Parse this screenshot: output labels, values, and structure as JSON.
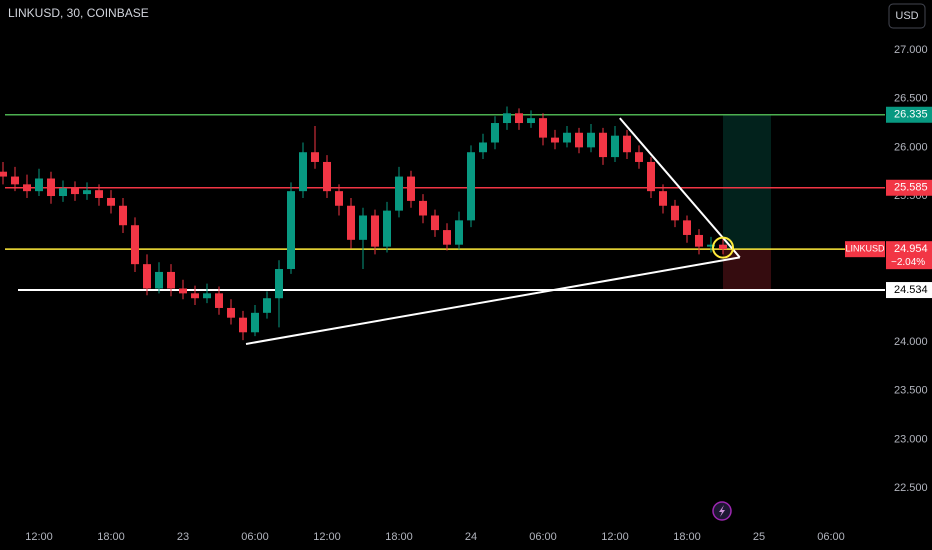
{
  "chart_data": {
    "type": "candlestick",
    "title": "LINKUSD, 30, COINBASE",
    "currency": "USD",
    "symbol": "LINKUSD",
    "change": "−2.04%",
    "up_color": "#089981",
    "down_color": "#f23645",
    "open": [
      25.75,
      25.7,
      25.62,
      25.55,
      25.68,
      25.5,
      25.58,
      25.52,
      25.56,
      25.48,
      25.4,
      25.2,
      24.8,
      24.55,
      24.72,
      24.55,
      24.5,
      24.45,
      24.5,
      24.35,
      24.25,
      24.1,
      24.3,
      24.45,
      24.75,
      25.55,
      25.95,
      25.85,
      25.55,
      25.4,
      25.05,
      25.3,
      24.98,
      25.35,
      25.7,
      25.45,
      25.3,
      25.15,
      25.0,
      25.25,
      25.95,
      26.05,
      26.25,
      26.35,
      26.25,
      26.3,
      26.1,
      26.05,
      26.15,
      26.0,
      26.15,
      25.9,
      26.12,
      25.95,
      25.85,
      25.55,
      25.4,
      25.25,
      25.1,
      24.98,
      25.0
    ],
    "high": [
      25.85,
      25.8,
      25.72,
      25.78,
      25.75,
      25.66,
      25.65,
      25.64,
      25.62,
      25.56,
      25.48,
      25.28,
      24.9,
      24.82,
      24.8,
      24.64,
      24.58,
      24.6,
      24.57,
      24.44,
      24.32,
      24.38,
      24.52,
      24.84,
      25.64,
      26.05,
      26.22,
      25.92,
      25.62,
      25.48,
      25.38,
      25.36,
      25.44,
      25.8,
      25.76,
      25.52,
      25.36,
      25.22,
      25.34,
      26.02,
      26.14,
      26.32,
      26.42,
      26.4,
      26.38,
      26.35,
      26.18,
      26.22,
      26.2,
      26.24,
      26.2,
      26.22,
      26.18,
      26.02,
      25.9,
      25.62,
      25.46,
      25.3,
      25.16,
      25.08,
      25.06
    ],
    "low": [
      25.62,
      25.55,
      25.48,
      25.5,
      25.42,
      25.44,
      25.45,
      25.46,
      25.4,
      25.32,
      25.12,
      24.72,
      24.48,
      24.5,
      24.47,
      24.44,
      24.38,
      24.4,
      24.28,
      24.18,
      24.02,
      24.06,
      24.24,
      24.15,
      24.7,
      25.48,
      25.78,
      25.48,
      25.3,
      24.96,
      24.75,
      24.9,
      24.92,
      25.28,
      25.38,
      25.22,
      25.08,
      24.94,
      24.95,
      25.18,
      25.88,
      25.98,
      26.18,
      26.18,
      26.2,
      26.02,
      25.98,
      26.0,
      25.94,
      25.95,
      25.82,
      25.85,
      25.88,
      25.78,
      25.48,
      25.32,
      25.18,
      25.02,
      24.9,
      24.92,
      24.9
    ],
    "close": [
      25.7,
      25.62,
      25.55,
      25.68,
      25.5,
      25.58,
      25.52,
      25.56,
      25.48,
      25.4,
      25.2,
      24.8,
      24.55,
      24.72,
      24.55,
      24.5,
      24.45,
      24.5,
      24.35,
      24.25,
      24.1,
      24.3,
      24.45,
      24.75,
      25.55,
      25.95,
      25.85,
      25.55,
      25.4,
      25.05,
      25.3,
      24.98,
      25.35,
      25.7,
      25.45,
      25.3,
      25.15,
      25.0,
      25.25,
      25.95,
      26.05,
      26.25,
      26.35,
      26.25,
      26.3,
      26.1,
      26.05,
      26.15,
      26.0,
      26.15,
      25.9,
      26.12,
      25.95,
      25.85,
      25.55,
      25.4,
      25.25,
      25.1,
      24.98,
      25.0,
      24.954
    ],
    "xlim": [
      -0.25,
      73.5
    ],
    "xticks": [
      {
        "value": 3,
        "label": "12:00"
      },
      {
        "value": 9,
        "label": "18:00"
      },
      {
        "value": 15,
        "label": "23"
      },
      {
        "value": 21,
        "label": "06:00"
      },
      {
        "value": 27,
        "label": "12:00"
      },
      {
        "value": 33,
        "label": "18:00"
      },
      {
        "value": 39,
        "label": "24"
      },
      {
        "value": 45,
        "label": "06:00"
      },
      {
        "value": 51,
        "label": "12:00"
      },
      {
        "value": 57,
        "label": "18:00"
      },
      {
        "value": 63,
        "label": "25"
      },
      {
        "value": 69,
        "label": "06:00"
      }
    ],
    "ylim": [
      22.12,
      27.514
    ],
    "yticks": [
      {
        "value": 27,
        "label": "27.000"
      },
      {
        "value": 26.5,
        "label": "26.500"
      },
      {
        "value": 26,
        "label": "26.000"
      },
      {
        "value": 25.5,
        "label": "25.500"
      },
      {
        "value": 24,
        "label": "24.000"
      },
      {
        "value": 23.5,
        "label": "23.500"
      },
      {
        "value": 23,
        "label": "23.000"
      },
      {
        "value": 22.5,
        "label": "22.500"
      }
    ],
    "grid": false,
    "hlines": [
      {
        "value": 26.335,
        "color": "#4caf50",
        "tag": true
      },
      {
        "value": 25.585,
        "color": "#f23645",
        "tag": true
      },
      {
        "value": 24.954,
        "color": "#ffeb3b",
        "tag": false
      },
      {
        "value": 24.534,
        "color": "#ffffff",
        "tag": true
      }
    ],
    "trendlines": [
      {
        "x": [
          20.25,
          61.4
        ],
        "y": [
          23.98,
          24.87
        ],
        "color": "#ffffff"
      },
      {
        "x": [
          51.4,
          61.4
        ],
        "y": [
          26.3,
          24.87
        ],
        "color": "#ffffff"
      }
    ],
    "position": {
      "start": 60,
      "end": 64,
      "entry": 24.954,
      "target": 26.335,
      "stop": 24.534
    },
    "highlight": {
      "x": 60,
      "y": 24.97,
      "color": "#ffeb3b"
    }
  }
}
